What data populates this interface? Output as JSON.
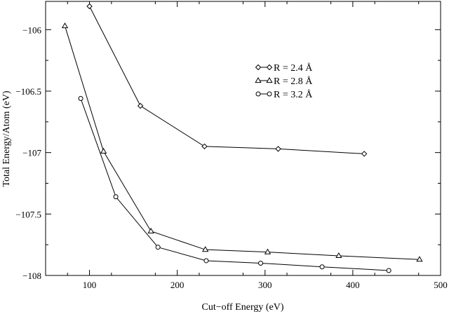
{
  "chart_data": {
    "type": "line",
    "title": "",
    "xlabel": "Cut−off Energy (eV)",
    "ylabel": "Total Energy/Atom (eV)",
    "xlim": [
      50,
      500
    ],
    "ylim": [
      -108,
      -105.77
    ],
    "xticks": [
      100,
      200,
      300,
      400,
      500
    ],
    "xtick_labels": [
      "100",
      "200",
      "300",
      "400",
      "500"
    ],
    "yticks": [
      -106,
      -106.5,
      -107,
      -107.5,
      -108
    ],
    "ytick_labels": [
      "−106",
      "−106.5",
      "−107",
      "−107.5",
      "−108"
    ],
    "grid": false,
    "legend_position": "upper-right",
    "series": [
      {
        "name": "R = 2.4 Å",
        "marker": "diamond",
        "x": [
          100,
          158,
          231,
          315,
          413
        ],
        "y": [
          -105.81,
          -106.62,
          -106.95,
          -106.97,
          -107.01
        ]
      },
      {
        "name": "R = 2.8 Å",
        "marker": "triangle",
        "x": [
          72,
          116,
          170,
          232,
          303,
          384,
          476
        ],
        "y": [
          -105.97,
          -106.99,
          -107.64,
          -107.79,
          -107.81,
          -107.84,
          -107.87
        ]
      },
      {
        "name": "R = 3.2 Å",
        "marker": "circle",
        "x": [
          90,
          130,
          178,
          233,
          295,
          365,
          441
        ],
        "y": [
          -106.56,
          -107.36,
          -107.77,
          -107.88,
          -107.9,
          -107.93,
          -107.96
        ]
      }
    ]
  }
}
